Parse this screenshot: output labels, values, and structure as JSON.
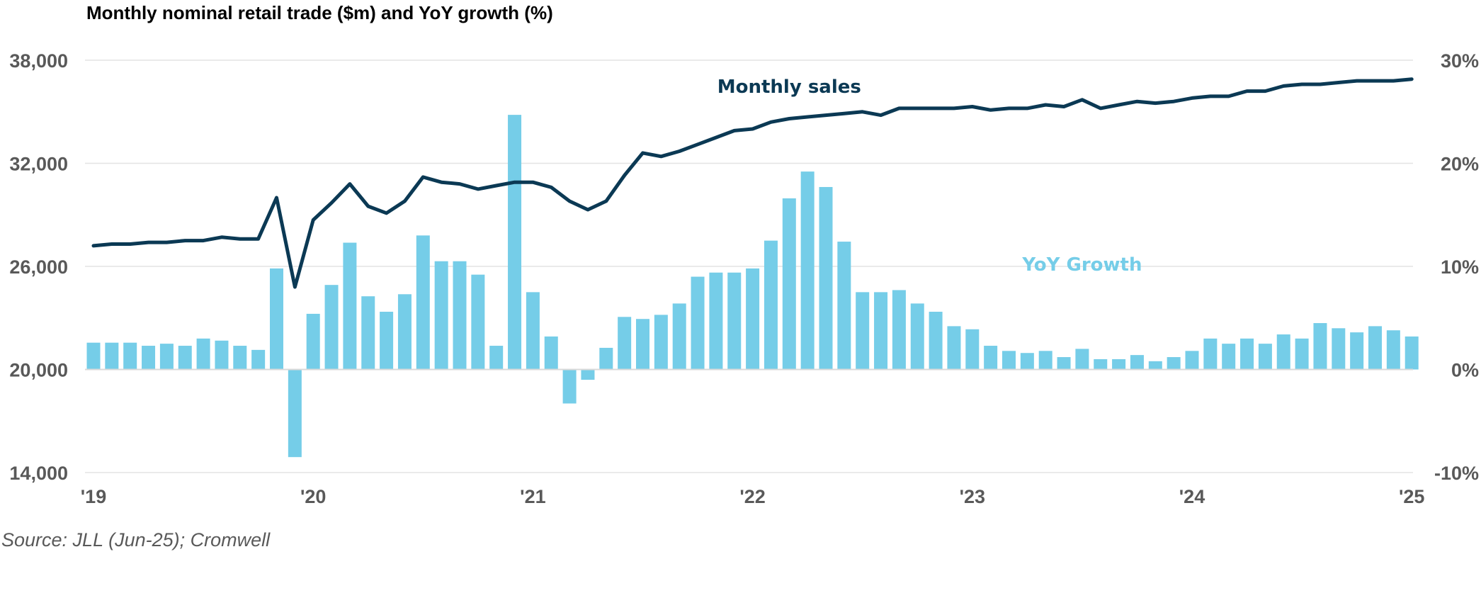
{
  "colors": {
    "line": "#0b3954",
    "bar": "#75cde8",
    "grid": "#e3e3e3",
    "tick": "#595959"
  },
  "chart_data": {
    "type": "bar+line",
    "title": "Monthly nominal retail trade ($m) and YoY growth (%)",
    "source": "Source: JLL (Jun-25); Cromwell",
    "x_start": "2019-01",
    "x_ticks": [
      {
        "label": "'19",
        "date": "2019-01"
      },
      {
        "label": "'20",
        "date": "2020-01"
      },
      {
        "label": "'21",
        "date": "2021-01"
      },
      {
        "label": "'22",
        "date": "2022-01"
      },
      {
        "label": "'23",
        "date": "2023-01"
      },
      {
        "label": "'24",
        "date": "2024-01"
      },
      {
        "label": "'25",
        "date": "2025-01"
      }
    ],
    "y_left": {
      "ticks": [
        "14,000",
        "20,000",
        "26,000",
        "32,000",
        "38,000"
      ],
      "range": [
        14000,
        38000
      ]
    },
    "y_right": {
      "ticks": [
        "-10%",
        "0%",
        "10%",
        "20%",
        "30%"
      ],
      "range": [
        -10,
        30
      ]
    },
    "line_series": {
      "name": "Monthly sales",
      "axis": "left",
      "values": [
        27200,
        27300,
        27300,
        27400,
        27400,
        27500,
        27500,
        27700,
        27600,
        27600,
        30000,
        24800,
        28700,
        29700,
        30800,
        29500,
        29100,
        29800,
        31200,
        30900,
        30800,
        30500,
        30700,
        30900,
        30900,
        30600,
        29800,
        29300,
        29800,
        31300,
        32600,
        32400,
        32700,
        33100,
        33500,
        33900,
        34000,
        34400,
        34600,
        34700,
        34800,
        34900,
        35000,
        34800,
        35200,
        35200,
        35200,
        35200,
        35300,
        35100,
        35200,
        35200,
        35400,
        35300,
        35700,
        35200,
        35400,
        35600,
        35500,
        35600,
        35800,
        35900,
        35900,
        36200,
        36200,
        36500,
        36600,
        36600,
        36700,
        36800,
        36800,
        36800,
        36900
      ],
      "label_position": {
        "date": "2022-03",
        "value": 36100
      }
    },
    "bar_series": {
      "name": "YoY Growth",
      "axis": "right",
      "values": [
        2.6,
        2.6,
        2.6,
        2.3,
        2.5,
        2.3,
        3.0,
        2.8,
        2.3,
        1.9,
        9.8,
        -8.5,
        5.4,
        8.2,
        12.3,
        7.1,
        5.6,
        7.3,
        13.0,
        10.5,
        10.5,
        9.2,
        2.3,
        24.7,
        7.5,
        3.2,
        -3.3,
        -1.0,
        2.1,
        5.1,
        4.9,
        5.3,
        6.4,
        9.0,
        9.4,
        9.4,
        9.8,
        12.5,
        16.6,
        19.2,
        17.7,
        12.4,
        7.5,
        7.5,
        7.7,
        6.4,
        5.6,
        4.2,
        3.9,
        2.3,
        1.8,
        1.6,
        1.8,
        1.2,
        2.0,
        1.0,
        1.0,
        1.4,
        0.8,
        1.2,
        1.8,
        3.0,
        2.5,
        3.0,
        2.5,
        3.4,
        3.0,
        4.5,
        4.0,
        3.6,
        4.2,
        3.8,
        3.2
      ],
      "label_position": {
        "date": "2023-07",
        "value": 9.6
      }
    }
  }
}
